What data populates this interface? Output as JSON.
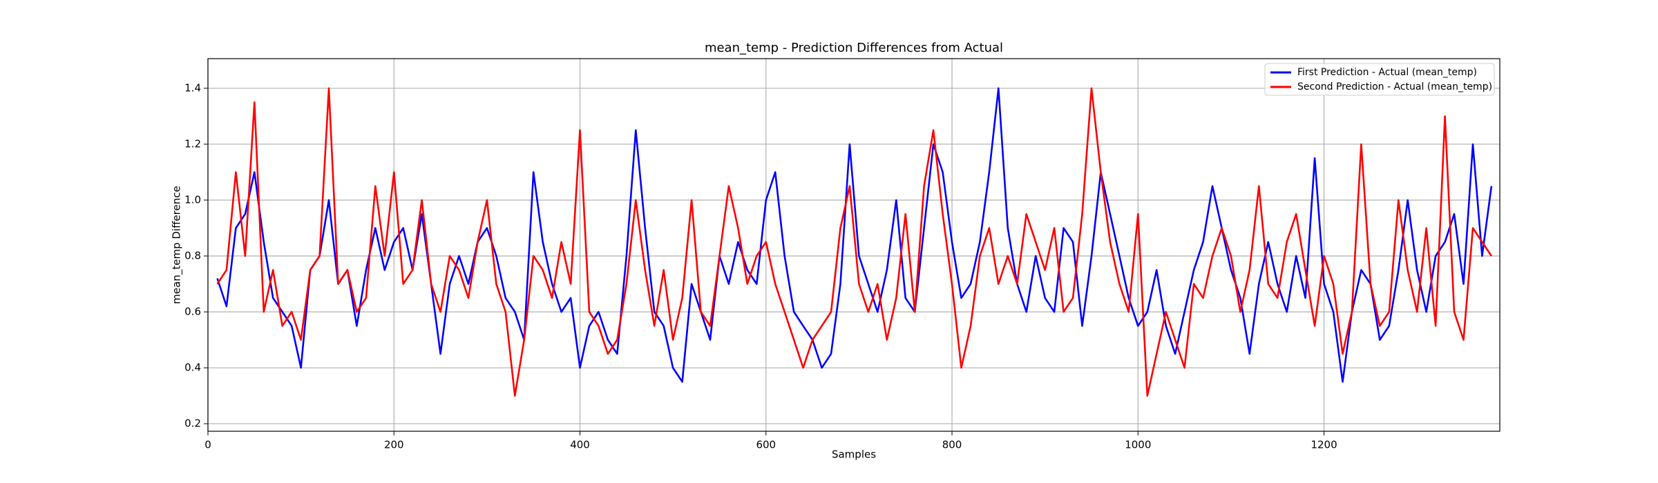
{
  "chart_data": {
    "type": "line",
    "title": "mean_temp - Prediction Differences from Actual",
    "xlabel": "Samples",
    "ylabel": "mean_temp Difference",
    "x": [
      10,
      20,
      30,
      40,
      50,
      60,
      70,
      80,
      90,
      100,
      110,
      120,
      130,
      140,
      150,
      160,
      170,
      180,
      190,
      200,
      210,
      220,
      230,
      240,
      250,
      260,
      270,
      280,
      290,
      300,
      310,
      320,
      330,
      340,
      350,
      360,
      370,
      380,
      390,
      400,
      410,
      420,
      430,
      440,
      450,
      460,
      470,
      480,
      490,
      500,
      510,
      520,
      530,
      540,
      550,
      560,
      570,
      580,
      590,
      600,
      610,
      620,
      630,
      640,
      650,
      660,
      670,
      680,
      690,
      700,
      710,
      720,
      730,
      740,
      750,
      760,
      770,
      780,
      790,
      800,
      810,
      820,
      830,
      840,
      850,
      860,
      870,
      880,
      890,
      900,
      910,
      920,
      930,
      940,
      950,
      960,
      970,
      980,
      990,
      1000,
      1010,
      1020,
      1030,
      1040,
      1050,
      1060,
      1070,
      1080,
      1090,
      1100,
      1110,
      1120,
      1130,
      1140,
      1150,
      1160,
      1170,
      1180,
      1190,
      1200,
      1210,
      1220,
      1230,
      1240,
      1250,
      1260,
      1270,
      1280,
      1290,
      1300,
      1310,
      1320,
      1330,
      1340,
      1350,
      1360,
      1370,
      1380
    ],
    "series": [
      {
        "name": "First Prediction - Actual (mean_temp)",
        "color": "#0000ff",
        "values": [
          0.72,
          0.62,
          0.9,
          0.95,
          1.1,
          0.85,
          0.65,
          0.6,
          0.55,
          0.4,
          0.75,
          0.8,
          1.0,
          0.7,
          0.75,
          0.55,
          0.75,
          0.9,
          0.75,
          0.85,
          0.9,
          0.75,
          0.95,
          0.7,
          0.45,
          0.7,
          0.8,
          0.7,
          0.85,
          0.9,
          0.8,
          0.65,
          0.6,
          0.5,
          1.1,
          0.85,
          0.7,
          0.6,
          0.65,
          0.4,
          0.55,
          0.6,
          0.5,
          0.45,
          0.8,
          1.25,
          0.9,
          0.6,
          0.55,
          0.4,
          0.35,
          0.7,
          0.6,
          0.5,
          0.8,
          0.7,
          0.85,
          0.75,
          0.7,
          1.0,
          1.1,
          0.8,
          0.6,
          0.55,
          0.5,
          0.4,
          0.45,
          0.7,
          1.2,
          0.8,
          0.7,
          0.6,
          0.75,
          1.0,
          0.65,
          0.6,
          0.9,
          1.2,
          1.1,
          0.85,
          0.65,
          0.7,
          0.85,
          1.1,
          1.4,
          0.9,
          0.7,
          0.6,
          0.8,
          0.65,
          0.6,
          0.9,
          0.85,
          0.55,
          0.8,
          1.1,
          0.95,
          0.8,
          0.65,
          0.55,
          0.6,
          0.75,
          0.55,
          0.45,
          0.6,
          0.75,
          0.85,
          1.05,
          0.9,
          0.75,
          0.65,
          0.45,
          0.7,
          0.85,
          0.7,
          0.6,
          0.8,
          0.65,
          1.15,
          0.7,
          0.6,
          0.35,
          0.6,
          0.75,
          0.7,
          0.5,
          0.55,
          0.75,
          1.0,
          0.75,
          0.6,
          0.8,
          0.85,
          0.95,
          0.7,
          1.2,
          0.8,
          1.05
        ]
      },
      {
        "name": "Second Prediction - Actual (mean_temp)",
        "color": "#ff0000",
        "values": [
          0.7,
          0.75,
          1.1,
          0.8,
          1.35,
          0.6,
          0.75,
          0.55,
          0.6,
          0.5,
          0.75,
          0.8,
          1.4,
          0.7,
          0.75,
          0.6,
          0.65,
          1.05,
          0.8,
          1.1,
          0.7,
          0.75,
          1.0,
          0.7,
          0.6,
          0.8,
          0.75,
          0.65,
          0.85,
          1.0,
          0.7,
          0.6,
          0.3,
          0.5,
          0.8,
          0.75,
          0.65,
          0.85,
          0.7,
          1.25,
          0.6,
          0.55,
          0.45,
          0.5,
          0.7,
          1.0,
          0.75,
          0.55,
          0.75,
          0.5,
          0.65,
          1.0,
          0.6,
          0.55,
          0.8,
          1.05,
          0.9,
          0.7,
          0.8,
          0.85,
          0.7,
          0.6,
          0.5,
          0.4,
          0.5,
          0.55,
          0.6,
          0.9,
          1.05,
          0.7,
          0.6,
          0.7,
          0.5,
          0.65,
          0.95,
          0.6,
          1.05,
          1.25,
          0.95,
          0.7,
          0.4,
          0.55,
          0.8,
          0.9,
          0.7,
          0.8,
          0.7,
          0.95,
          0.85,
          0.75,
          0.9,
          0.6,
          0.65,
          0.95,
          1.4,
          1.1,
          0.85,
          0.7,
          0.6,
          0.95,
          0.3,
          0.45,
          0.6,
          0.5,
          0.4,
          0.7,
          0.65,
          0.8,
          0.9,
          0.8,
          0.6,
          0.75,
          1.05,
          0.7,
          0.65,
          0.85,
          0.95,
          0.75,
          0.55,
          0.8,
          0.7,
          0.45,
          0.6,
          1.2,
          0.7,
          0.55,
          0.6,
          1.0,
          0.75,
          0.6,
          0.9,
          0.55,
          1.3,
          0.6,
          0.5,
          0.9,
          0.85,
          0.8
        ]
      }
    ],
    "xlim": [
      0,
      1389
    ],
    "ylim": [
      0.173,
      1.506
    ],
    "xticks": [
      0,
      200,
      400,
      600,
      800,
      1000,
      1200
    ],
    "yticks": [
      0.2,
      0.4,
      0.6,
      0.8,
      1.0,
      1.2,
      1.4
    ],
    "grid": true,
    "legend": "upper right"
  }
}
